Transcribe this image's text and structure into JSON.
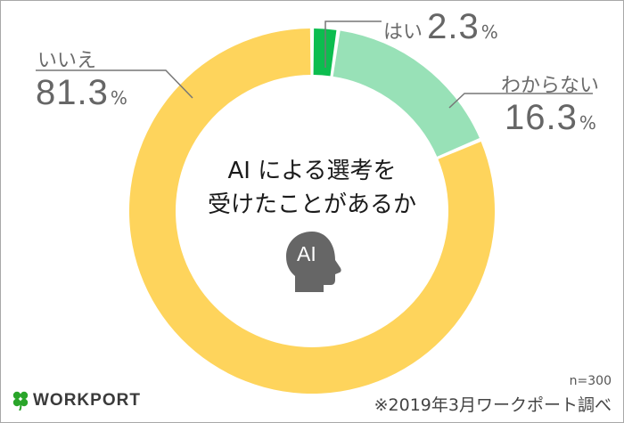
{
  "chart_data": {
    "type": "pie",
    "subtype": "donut",
    "title": "AIによる選考を受けたことがあるか",
    "categories": [
      "はい",
      "わからない",
      "いいえ"
    ],
    "values": [
      2.3,
      16.3,
      81.3
    ],
    "unit": "%",
    "colors": [
      "#0cbd4f",
      "#98e1b7",
      "#fed45c"
    ],
    "start_angle_deg": 0,
    "direction": "clockwise",
    "legend": "none (direct labels with leader lines)",
    "sample_size": "n=300",
    "source": "※2019年3月ワークポート調べ"
  },
  "labels": {
    "yes": {
      "name": "はい",
      "value": "2.3",
      "unit": "%"
    },
    "unknown": {
      "name": "わからない",
      "value": "16.3",
      "unit": "%"
    },
    "no": {
      "name": "いいえ",
      "value": "81.3",
      "unit": "%"
    }
  },
  "title": {
    "line1": "AI による選考を",
    "line2": "受けたことがあるか"
  },
  "icon": {
    "name": "ai-head-icon",
    "text": "AI"
  },
  "footer": {
    "n": "n=300",
    "source": "※2019年3月ワークポート調べ",
    "logo_text": "WORKPORT"
  }
}
